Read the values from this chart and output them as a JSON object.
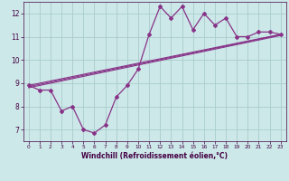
{
  "title": "",
  "xlabel": "Windchill (Refroidissement éolien,°C)",
  "background_color": "#cce8e8",
  "grid_color": "#aacccc",
  "line_color": "#883388",
  "xlim": [
    -0.5,
    23.5
  ],
  "ylim": [
    6.5,
    12.5
  ],
  "xticks": [
    0,
    1,
    2,
    3,
    4,
    5,
    6,
    7,
    8,
    9,
    10,
    11,
    12,
    13,
    14,
    15,
    16,
    17,
    18,
    19,
    20,
    21,
    22,
    23
  ],
  "yticks": [
    7,
    8,
    9,
    10,
    11,
    12
  ],
  "main_x": [
    0,
    1,
    2,
    3,
    4,
    5,
    6,
    7,
    8,
    9,
    10,
    11,
    12,
    13,
    14,
    15,
    16,
    17,
    18,
    19,
    20,
    21,
    22,
    23
  ],
  "main_y": [
    8.9,
    8.7,
    8.7,
    7.8,
    8.0,
    7.0,
    6.85,
    7.2,
    8.4,
    8.9,
    9.6,
    11.1,
    12.3,
    11.8,
    12.3,
    11.3,
    12.0,
    11.5,
    11.8,
    11.0,
    11.0,
    11.2,
    11.2,
    11.1
  ],
  "trend1_x": [
    0,
    23
  ],
  "trend1_y": [
    8.9,
    11.1
  ],
  "trend2_x": [
    0,
    23
  ],
  "trend2_y": [
    8.85,
    11.08
  ],
  "trend3_x": [
    0,
    23
  ],
  "trend3_y": [
    8.8,
    11.05
  ]
}
